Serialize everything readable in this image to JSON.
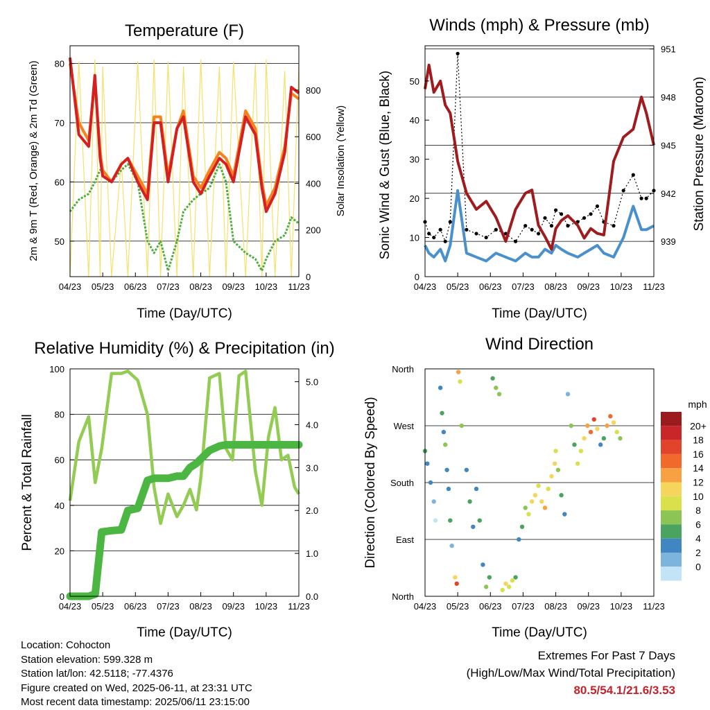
{
  "info": {
    "location": "Location: Cohocton",
    "elevation": "Station elevation: 599.328 m",
    "latlon": "Station lat/lon: 42.5118; -77.4376",
    "created": "Figure created on Wed, 2025-06-11, at 23:31 UTC",
    "latest": "Most recent data timestamp: 2025/06/11 23:15:00"
  },
  "extremes": {
    "title": "Extremes For Past 7 Days",
    "subtitle": "(High/Low/Max Wind/Total Precipitation)",
    "values": "80.5/54.1/21.6/3.53",
    "color": "#c4222a"
  },
  "chart_data": [
    {
      "type": "line",
      "title": "Temperature (F)",
      "xlabel": "Time (Day/UTC)",
      "ylabel": "2m & 9m T (Red, Orange) & 2m Td (Green)",
      "ylabel_right": "Solar Insolation (Yellow)",
      "x_ticks": [
        "04/23",
        "05/23",
        "06/23",
        "07/23",
        "08/23",
        "09/23",
        "10/23",
        "11/23"
      ],
      "ylim": [
        44,
        83
      ],
      "y_ticks": [
        50,
        60,
        70,
        80
      ],
      "ylim_right": [
        0,
        990
      ],
      "y_ticks_right": [
        0,
        200,
        400,
        600,
        800
      ],
      "grid": "horizontal",
      "x": [
        4.23,
        4.5,
        4.8,
        4.99,
        5.15,
        5.23,
        5.5,
        5.8,
        6.0,
        6.3,
        6.6,
        6.8,
        7.0,
        7.23,
        7.5,
        7.7,
        8.0,
        8.23,
        8.5,
        8.8,
        9.0,
        9.23,
        9.6,
        9.9,
        10.1,
        10.23,
        10.5,
        10.8,
        11.0,
        11.23
      ],
      "series": [
        {
          "name": "2m T",
          "color": "#d42020",
          "values": [
            81,
            68,
            66,
            78,
            64,
            61,
            60,
            63,
            64,
            60,
            57,
            70,
            70,
            60,
            69,
            71,
            60,
            58,
            61,
            64,
            63,
            60,
            71,
            68,
            59,
            55,
            58,
            65,
            76,
            75
          ]
        },
        {
          "name": "9m T",
          "color": "#f5821f",
          "values": [
            80,
            70,
            67,
            77,
            65,
            62,
            60,
            63,
            64,
            61,
            58,
            71,
            71,
            61,
            69,
            72,
            61,
            59,
            62,
            65,
            64,
            61,
            72,
            69,
            60,
            56,
            59,
            66,
            75,
            74
          ]
        },
        {
          "name": "2m Td",
          "color": "#4cae3c",
          "values": [
            55,
            57,
            58,
            60,
            62,
            62,
            60,
            62,
            63,
            60,
            50,
            48,
            50,
            45,
            50,
            55,
            57,
            58,
            59,
            63,
            60,
            50,
            48,
            47,
            45,
            47,
            50,
            51,
            54,
            53
          ]
        },
        {
          "name": "Solar Insolation",
          "color": "#f5e06a",
          "axis": "right",
          "values": [
            0,
            920,
            0,
            930,
            0,
            900,
            0,
            500,
            0,
            920,
            0,
            930,
            0,
            920,
            0,
            900,
            0,
            930,
            0,
            900,
            0,
            920,
            0,
            910,
            0,
            930,
            0,
            880,
            0,
            900
          ]
        }
      ]
    },
    {
      "type": "line",
      "title": "Winds (mph) & Pressure (mb)",
      "xlabel": "Time (Day/UTC)",
      "ylabel": "Sonic Wind & Gust (Blue, Black)",
      "ylabel_right": "Station Pressure (Maroon)",
      "x_ticks": [
        "04/23",
        "05/23",
        "06/23",
        "07/23",
        "08/23",
        "09/23",
        "10/23",
        "11/23"
      ],
      "ylim": [
        0,
        59
      ],
      "y_ticks": [
        0,
        10,
        20,
        30,
        40,
        50
      ],
      "ylim_right": [
        936.8,
        951.2
      ],
      "y_ticks_right": [
        939,
        942,
        945,
        948,
        951
      ],
      "grid": "horizontal",
      "x": [
        4.23,
        4.35,
        4.5,
        4.7,
        4.85,
        5.0,
        5.23,
        5.5,
        5.8,
        6.1,
        6.4,
        6.7,
        7.0,
        7.3,
        7.5,
        7.7,
        7.9,
        8.1,
        8.23,
        8.4,
        8.6,
        8.9,
        9.1,
        9.3,
        9.5,
        9.7,
        10.0,
        10.3,
        10.6,
        10.85,
        11.0,
        11.23
      ],
      "series": [
        {
          "name": "Sonic Wind",
          "color": "#4a90cc",
          "values": [
            8,
            6,
            5,
            7,
            4,
            8,
            22,
            6,
            5,
            4,
            6,
            5,
            4,
            6,
            5,
            5,
            7,
            6,
            8,
            7,
            6,
            5,
            6,
            7,
            8,
            6,
            5,
            10,
            18,
            12,
            12,
            13
          ]
        },
        {
          "name": "Gust",
          "color": "#000000",
          "values": [
            14,
            11,
            10,
            12,
            9,
            14,
            57,
            12,
            11,
            10,
            12,
            11,
            9,
            13,
            12,
            11,
            15,
            13,
            17,
            16,
            13,
            14,
            15,
            16,
            18,
            14,
            13,
            22,
            26,
            20,
            20,
            22
          ]
        },
        {
          "name": "Station Pressure",
          "color": "#9e1b1e",
          "axis": "right",
          "values": [
            948.5,
            950.0,
            948.3,
            949.0,
            947.5,
            947.0,
            944.0,
            942.0,
            941.0,
            941.5,
            940.5,
            939.0,
            941.0,
            942.0,
            942.2,
            940.0,
            939.3,
            938.5,
            939.8,
            940.3,
            940.6,
            940.0,
            939.2,
            939.8,
            939.5,
            939.4,
            944.0,
            945.5,
            946.0,
            948.0,
            947.0,
            945.0
          ]
        }
      ]
    },
    {
      "type": "line",
      "title": "Relative Humidity (%) & Precipitation (in)",
      "xlabel": "Time (Day/UTC)",
      "ylabel": "Percent & Total Rainfall",
      "x_ticks": [
        "04/23",
        "05/23",
        "06/23",
        "07/23",
        "08/23",
        "09/23",
        "10/23",
        "11/23"
      ],
      "ylim": [
        0,
        100
      ],
      "y_ticks": [
        0,
        20,
        40,
        60,
        80,
        100
      ],
      "ylim_right": [
        0,
        5.3
      ],
      "y_ticks_right": [
        "0.0",
        "1.0",
        "2.0",
        "3.0",
        "4.0",
        "5.0"
      ],
      "grid": "horizontal",
      "x": [
        4.23,
        4.5,
        4.8,
        5.0,
        5.2,
        5.5,
        5.8,
        6.0,
        6.3,
        6.6,
        6.8,
        7.0,
        7.23,
        7.5,
        7.7,
        7.9,
        8.1,
        8.23,
        8.5,
        8.8,
        9.0,
        9.2,
        9.4,
        9.6,
        9.9,
        10.1,
        10.3,
        10.5,
        10.7,
        10.9,
        11.1,
        11.23
      ],
      "series": [
        {
          "name": "Relative Humidity",
          "color": "#92cc52",
          "values": [
            42,
            68,
            79,
            50,
            65,
            98,
            98,
            99,
            95,
            80,
            48,
            32,
            45,
            35,
            40,
            47,
            38,
            52,
            96,
            98,
            65,
            60,
            97,
            99,
            55,
            40,
            70,
            83,
            60,
            62,
            48,
            45
          ]
        },
        {
          "name": "Total Precipitation",
          "color": "#4bb641",
          "axis": "right",
          "values": [
            0.0,
            0.0,
            0.0,
            0.05,
            1.5,
            1.53,
            1.55,
            2.0,
            2.05,
            2.7,
            2.75,
            2.75,
            2.75,
            2.8,
            2.8,
            3.0,
            3.1,
            3.2,
            3.4,
            3.5,
            3.53,
            3.53,
            3.53,
            3.53,
            3.53,
            3.53,
            3.53,
            3.53,
            3.53,
            3.53,
            3.53,
            3.53
          ]
        }
      ]
    },
    {
      "type": "scatter",
      "title": "Wind Direction",
      "xlabel": "Time (Day/UTC)",
      "ylabel": "Direction (Colored By Speed)",
      "x_ticks": [
        "04/23",
        "05/23",
        "06/23",
        "07/23",
        "08/23",
        "09/23",
        "10/23",
        "11/23"
      ],
      "y_ticks": [
        "North",
        "East",
        "South",
        "West",
        "North"
      ],
      "ylim": [
        0,
        360
      ],
      "grid": "horizontal",
      "legend": {
        "title": "mph",
        "placement": "right",
        "labels": [
          "20+",
          "18",
          "16",
          "14",
          "12",
          "10",
          "8",
          "6",
          "4",
          "2",
          "0"
        ],
        "colors": [
          "#9b1b1e",
          "#c8262b",
          "#e2432b",
          "#f26a2b",
          "#f8a142",
          "#f5d55c",
          "#d9e04b",
          "#8cc455",
          "#4aa35f",
          "#3f86c2",
          "#7db4de",
          "#c3e3f6"
        ]
      },
      "points": [
        {
          "x": 4.23,
          "dir": 230,
          "spd": 6
        },
        {
          "x": 4.3,
          "dir": 210,
          "spd": 4
        },
        {
          "x": 4.4,
          "dir": 180,
          "spd": 3
        },
        {
          "x": 4.5,
          "dir": 150,
          "spd": 2
        },
        {
          "x": 4.55,
          "dir": 120,
          "spd": 0
        },
        {
          "x": 4.7,
          "dir": 330,
          "spd": 3
        },
        {
          "x": 4.75,
          "dir": 290,
          "spd": 6
        },
        {
          "x": 4.8,
          "dir": 260,
          "spd": 4
        },
        {
          "x": 4.85,
          "dir": 240,
          "spd": 8
        },
        {
          "x": 4.9,
          "dir": 200,
          "spd": 3
        },
        {
          "x": 4.95,
          "dir": 170,
          "spd": 4
        },
        {
          "x": 5.0,
          "dir": 120,
          "spd": 5
        },
        {
          "x": 5.05,
          "dir": 80,
          "spd": 2
        },
        {
          "x": 5.15,
          "dir": 30,
          "spd": 12
        },
        {
          "x": 5.2,
          "dir": 20,
          "spd": 18
        },
        {
          "x": 5.25,
          "dir": 355,
          "spd": 14
        },
        {
          "x": 5.3,
          "dir": 340,
          "spd": 10
        },
        {
          "x": 5.35,
          "dir": 270,
          "spd": 8
        },
        {
          "x": 5.5,
          "dir": 200,
          "spd": 4
        },
        {
          "x": 5.6,
          "dir": 150,
          "spd": 5
        },
        {
          "x": 5.7,
          "dir": 110,
          "spd": 3
        },
        {
          "x": 5.8,
          "dir": 170,
          "spd": 4
        },
        {
          "x": 5.9,
          "dir": 120,
          "spd": 6
        },
        {
          "x": 6.0,
          "dir": 50,
          "spd": 4
        },
        {
          "x": 6.1,
          "dir": 15,
          "spd": 7
        },
        {
          "x": 6.2,
          "dir": 30,
          "spd": 5
        },
        {
          "x": 6.3,
          "dir": 345,
          "spd": 6
        },
        {
          "x": 6.4,
          "dir": 330,
          "spd": 8
        },
        {
          "x": 6.5,
          "dir": 320,
          "spd": 7
        },
        {
          "x": 6.6,
          "dir": 10,
          "spd": 10
        },
        {
          "x": 6.7,
          "dir": 20,
          "spd": 12
        },
        {
          "x": 6.8,
          "dir": 15,
          "spd": 10
        },
        {
          "x": 6.9,
          "dir": 25,
          "spd": 9
        },
        {
          "x": 7.0,
          "dir": 30,
          "spd": 6
        },
        {
          "x": 7.1,
          "dir": 90,
          "spd": 4
        },
        {
          "x": 7.2,
          "dir": 110,
          "spd": 5
        },
        {
          "x": 7.3,
          "dir": 140,
          "spd": 8
        },
        {
          "x": 7.4,
          "dir": 130,
          "spd": 10
        },
        {
          "x": 7.5,
          "dir": 150,
          "spd": 12
        },
        {
          "x": 7.6,
          "dir": 160,
          "spd": 11
        },
        {
          "x": 7.7,
          "dir": 175,
          "spd": 9
        },
        {
          "x": 7.8,
          "dir": 150,
          "spd": 12
        },
        {
          "x": 7.9,
          "dir": 140,
          "spd": 13
        },
        {
          "x": 8.0,
          "dir": 170,
          "spd": 10
        },
        {
          "x": 8.1,
          "dir": 190,
          "spd": 11
        },
        {
          "x": 8.2,
          "dir": 210,
          "spd": 12
        },
        {
          "x": 8.23,
          "dir": 230,
          "spd": 9
        },
        {
          "x": 8.3,
          "dir": 200,
          "spd": 7
        },
        {
          "x": 8.4,
          "dir": 160,
          "spd": 5
        },
        {
          "x": 8.5,
          "dir": 130,
          "spd": 4
        },
        {
          "x": 8.6,
          "dir": 320,
          "spd": 2
        },
        {
          "x": 8.7,
          "dir": 270,
          "spd": 8
        },
        {
          "x": 8.8,
          "dir": 240,
          "spd": 6
        },
        {
          "x": 8.9,
          "dir": 210,
          "spd": 9
        },
        {
          "x": 9.0,
          "dir": 230,
          "spd": 10
        },
        {
          "x": 9.1,
          "dir": 250,
          "spd": 12
        },
        {
          "x": 9.2,
          "dir": 270,
          "spd": 14
        },
        {
          "x": 9.3,
          "dir": 260,
          "spd": 16
        },
        {
          "x": 9.4,
          "dir": 280,
          "spd": 17
        },
        {
          "x": 9.5,
          "dir": 265,
          "spd": 12
        },
        {
          "x": 9.6,
          "dir": 240,
          "spd": 4
        },
        {
          "x": 9.7,
          "dir": 250,
          "spd": 6
        },
        {
          "x": 9.8,
          "dir": 270,
          "spd": 14
        },
        {
          "x": 9.9,
          "dir": 285,
          "spd": 16
        },
        {
          "x": 10.0,
          "dir": 275,
          "spd": 11
        },
        {
          "x": 10.1,
          "dir": 260,
          "spd": 9
        },
        {
          "x": 10.2,
          "dir": 250,
          "spd": 7
        }
      ]
    }
  ]
}
